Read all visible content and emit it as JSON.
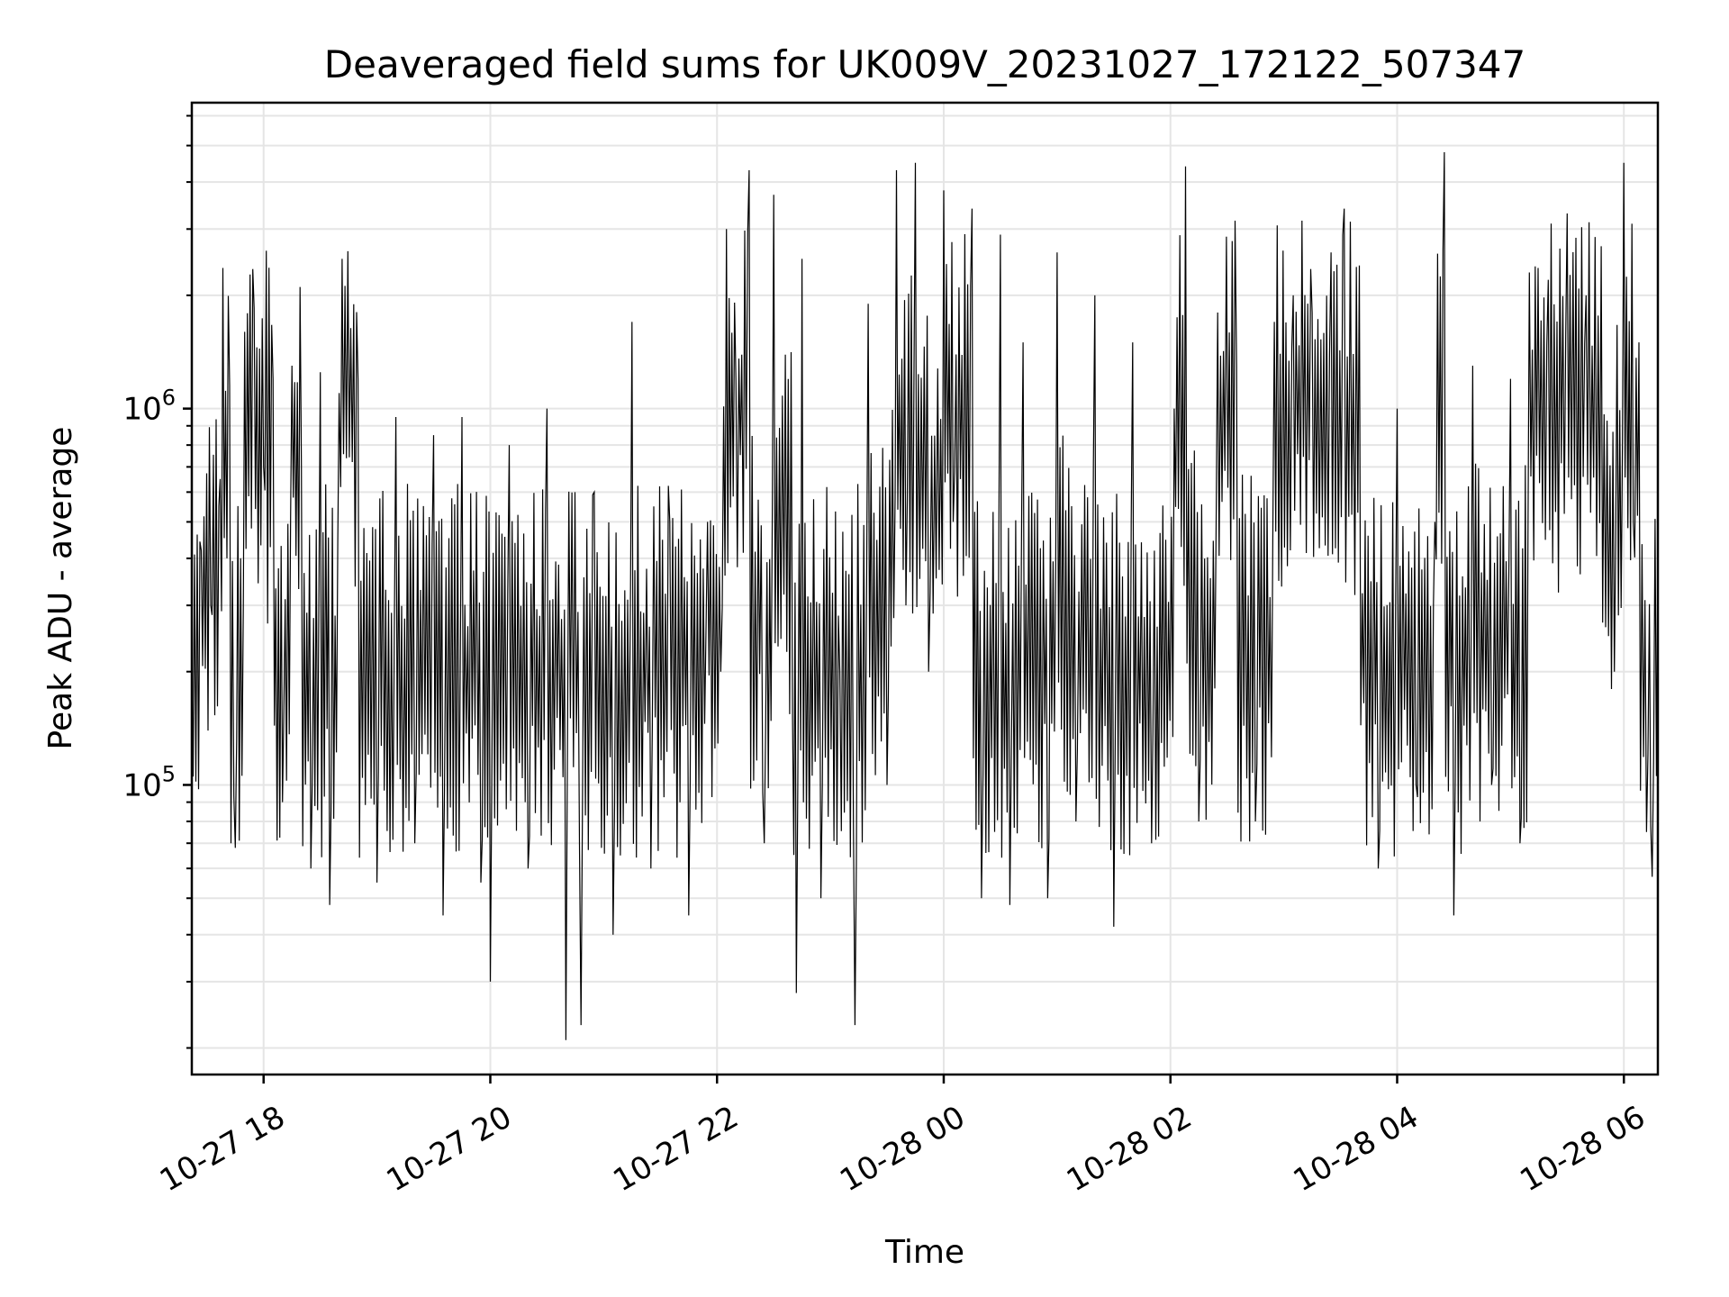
{
  "chart_data": {
    "type": "line",
    "title": "Deaveraged field sums for UK009V_20231027_172122_507347",
    "xlabel": "Time",
    "ylabel": "Peak ADU - average",
    "yscale": "log",
    "ylim": [
      17000,
      6500000
    ],
    "xlim": [
      "2023-10-27 17:22",
      "2023-10-28 06:18"
    ],
    "grid": true,
    "x_ticks": [
      "10-27 18",
      "10-27 20",
      "10-27 22",
      "10-28 00",
      "10-28 02",
      "10-28 04",
      "10-28 06"
    ],
    "y_ticks": [
      {
        "base": "10",
        "exp": "5",
        "value": 100000
      },
      {
        "base": "10",
        "exp": "6",
        "value": 1000000
      }
    ],
    "series": [
      {
        "color": "#000000",
        "points": [
          [
            "2023-10-27 17:22",
            200000
          ],
          [
            "2023-10-27 17:27",
            420000
          ],
          [
            "2023-10-27 17:32",
            300000
          ],
          [
            "2023-10-27 17:37",
            650000
          ],
          [
            "2023-10-27 17:42",
            1150000
          ],
          [
            "2023-10-27 17:45",
            68000
          ],
          [
            "2023-10-27 17:50",
            1600000
          ],
          [
            "2023-10-27 17:55",
            1850000
          ],
          [
            "2023-10-27 18:00",
            700000
          ],
          [
            "2023-10-27 18:05",
            1200000
          ],
          [
            "2023-10-27 18:10",
            90000
          ],
          [
            "2023-10-27 18:15",
            1300000
          ],
          [
            "2023-10-27 18:20",
            700000
          ],
          [
            "2023-10-27 18:25",
            60000
          ],
          [
            "2023-10-27 18:30",
            1250000
          ],
          [
            "2023-10-27 18:35",
            48000
          ],
          [
            "2023-10-27 18:40",
            1100000
          ],
          [
            "2023-10-27 18:50",
            1200000
          ],
          [
            "2023-10-27 19:00",
            55000
          ],
          [
            "2023-10-27 19:10",
            950000
          ],
          [
            "2023-10-27 19:20",
            70000
          ],
          [
            "2023-10-27 19:30",
            850000
          ],
          [
            "2023-10-27 19:35",
            45000
          ],
          [
            "2023-10-27 19:45",
            950000
          ],
          [
            "2023-10-27 19:55",
            55000
          ],
          [
            "2023-10-27 20:00",
            30000
          ],
          [
            "2023-10-27 20:10",
            800000
          ],
          [
            "2023-10-27 20:20",
            60000
          ],
          [
            "2023-10-27 20:30",
            1000000
          ],
          [
            "2023-10-27 20:40",
            21000
          ],
          [
            "2023-10-27 20:48",
            23000
          ],
          [
            "2023-10-27 20:55",
            600000
          ],
          [
            "2023-10-27 21:05",
            40000
          ],
          [
            "2023-10-27 21:15",
            1700000
          ],
          [
            "2023-10-27 21:25",
            60000
          ],
          [
            "2023-10-27 21:35",
            500000
          ],
          [
            "2023-10-27 21:45",
            45000
          ],
          [
            "2023-10-27 21:55",
            500000
          ],
          [
            "2023-10-27 22:02",
            200000
          ],
          [
            "2023-10-27 22:05",
            3000000
          ],
          [
            "2023-10-27 22:10",
            1200000
          ],
          [
            "2023-10-27 22:17",
            4300000
          ],
          [
            "2023-10-27 22:25",
            70000
          ],
          [
            "2023-10-27 22:30",
            3700000
          ],
          [
            "2023-10-27 22:40",
            150000
          ],
          [
            "2023-10-27 22:42",
            28000
          ],
          [
            "2023-10-27 22:45",
            2500000
          ],
          [
            "2023-10-27 22:55",
            50000
          ],
          [
            "2023-10-27 23:05",
            200000
          ],
          [
            "2023-10-27 23:13",
            23000
          ],
          [
            "2023-10-27 23:20",
            1900000
          ],
          [
            "2023-10-27 23:30",
            100000
          ],
          [
            "2023-10-27 23:35",
            4300000
          ],
          [
            "2023-10-27 23:40",
            300000
          ],
          [
            "2023-10-27 23:45",
            4500000
          ],
          [
            "2023-10-27 23:52",
            200000
          ],
          [
            "2023-10-28 00:00",
            3800000
          ],
          [
            "2023-10-28 00:05",
            500000
          ],
          [
            "2023-10-28 00:15",
            3400000
          ],
          [
            "2023-10-28 00:20",
            50000
          ],
          [
            "2023-10-28 00:30",
            2900000
          ],
          [
            "2023-10-28 00:35",
            48000
          ],
          [
            "2023-10-28 00:42",
            1500000
          ],
          [
            "2023-10-28 00:55",
            50000
          ],
          [
            "2023-10-28 01:00",
            2600000
          ],
          [
            "2023-10-28 01:10",
            80000
          ],
          [
            "2023-10-28 01:20",
            2000000
          ],
          [
            "2023-10-28 01:30",
            42000
          ],
          [
            "2023-10-28 01:40",
            1500000
          ],
          [
            "2023-10-28 01:50",
            70000
          ],
          [
            "2023-10-28 02:02",
            1000000
          ],
          [
            "2023-10-28 02:08",
            4400000
          ],
          [
            "2023-10-28 02:15",
            80000
          ],
          [
            "2023-10-28 02:25",
            1800000
          ],
          [
            "2023-10-28 02:35",
            1300000
          ],
          [
            "2023-10-28 02:45",
            80000
          ],
          [
            "2023-10-28 02:55",
            1700000
          ],
          [
            "2023-10-28 03:05",
            2000000
          ],
          [
            "2023-10-28 03:15",
            1800000
          ],
          [
            "2023-10-28 03:25",
            2600000
          ],
          [
            "2023-10-28 03:32",
            3400000
          ],
          [
            "2023-10-28 03:40",
            2400000
          ],
          [
            "2023-10-28 03:50",
            60000
          ],
          [
            "2023-10-28 04:00",
            1000000
          ],
          [
            "2023-10-28 04:10",
            100000
          ],
          [
            "2023-10-28 04:20",
            500000
          ],
          [
            "2023-10-28 04:25",
            4800000
          ],
          [
            "2023-10-28 04:30",
            45000
          ],
          [
            "2023-10-28 04:40",
            1300000
          ],
          [
            "2023-10-28 04:50",
            100000
          ],
          [
            "2023-10-28 05:00",
            1200000
          ],
          [
            "2023-10-28 05:05",
            70000
          ],
          [
            "2023-10-28 05:10",
            2300000
          ],
          [
            "2023-10-28 05:20",
            2200000
          ],
          [
            "2023-10-28 05:30",
            3300000
          ],
          [
            "2023-10-28 05:40",
            2000000
          ],
          [
            "2023-10-28 05:48",
            2700000
          ],
          [
            "2023-10-28 05:55",
            200000
          ],
          [
            "2023-10-28 06:00",
            4500000
          ],
          [
            "2023-10-28 06:05",
            500000
          ],
          [
            "2023-10-28 06:08",
            1500000
          ],
          [
            "2023-10-28 06:12",
            75000
          ],
          [
            "2023-10-28 06:15",
            57000
          ],
          [
            "2023-10-28 06:18",
            460000
          ]
        ]
      }
    ]
  }
}
